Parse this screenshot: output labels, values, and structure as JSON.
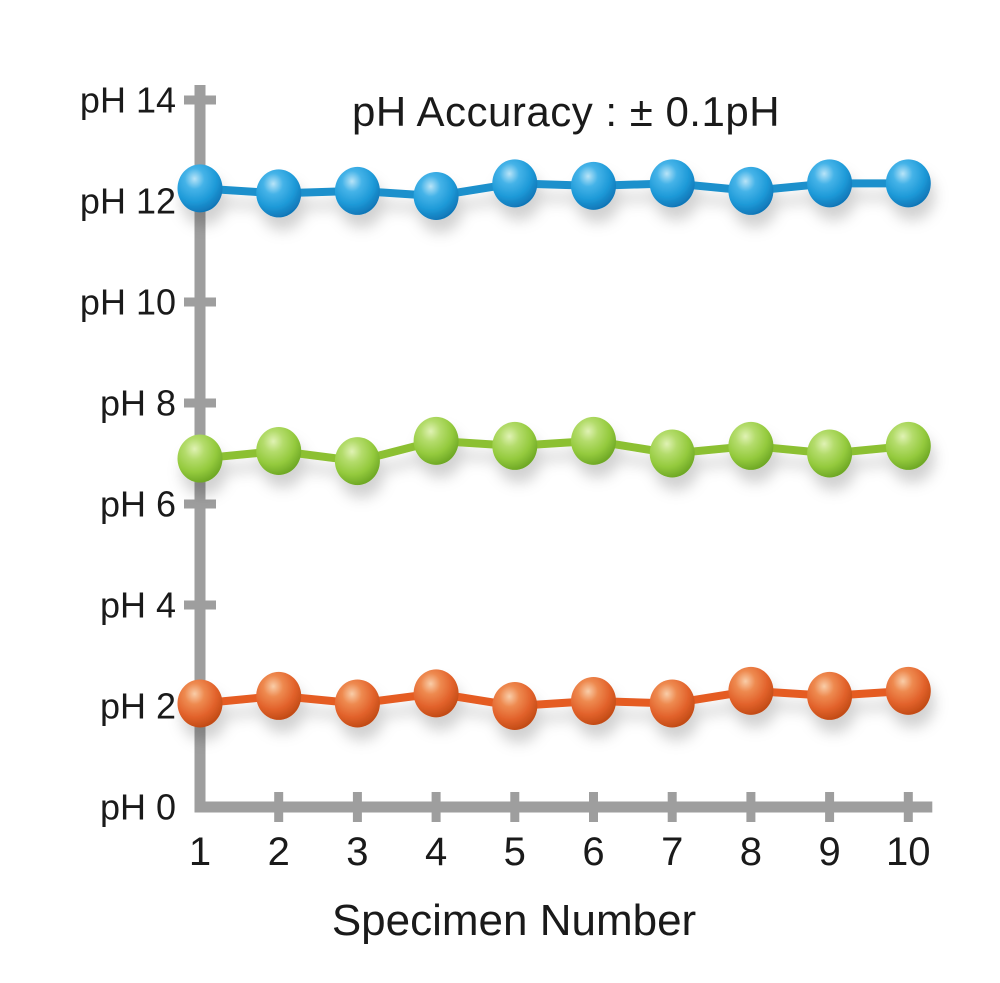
{
  "chart_data": {
    "type": "line",
    "title": "pH Accuracy : ± 0.1pH",
    "xlabel": "Specimen Number",
    "ylabel": "pH",
    "xlim": [
      1,
      10
    ],
    "ylim": [
      0,
      14
    ],
    "grid": false,
    "legend": "none",
    "x": [
      1,
      2,
      3,
      4,
      5,
      6,
      7,
      8,
      9,
      10
    ],
    "x_tick_labels": [
      "1",
      "2",
      "3",
      "4",
      "5",
      "6",
      "7",
      "8",
      "9",
      "10"
    ],
    "y_ticks": [
      14,
      12,
      10,
      8,
      6,
      4,
      2,
      0
    ],
    "y_tick_labels": [
      "pH 14",
      "pH 12",
      "pH 10",
      "pH 8",
      "pH 6",
      "pH 4",
      "pH 2",
      "pH 0"
    ],
    "series": [
      {
        "name": "blue",
        "values": [
          12.25,
          12.15,
          12.2,
          12.1,
          12.35,
          12.3,
          12.35,
          12.2,
          12.35,
          12.35
        ],
        "line_color": "#1a90cc",
        "ball_light": "#b8e4f8",
        "ball_mid": "#45b3e8",
        "ball_base": "#1e9ad8",
        "ball_dark": "#0c6cae"
      },
      {
        "name": "green",
        "values": [
          6.9,
          7.05,
          6.85,
          7.25,
          7.15,
          7.25,
          7.0,
          7.15,
          7.0,
          7.15
        ],
        "line_color": "#8cc030",
        "ball_light": "#e0f2b4",
        "ball_mid": "#b4dc6c",
        "ball_base": "#94ca3d",
        "ball_dark": "#639e1e"
      },
      {
        "name": "orange",
        "values": [
          2.05,
          2.2,
          2.05,
          2.25,
          2.0,
          2.1,
          2.05,
          2.3,
          2.2,
          2.3
        ],
        "line_color": "#e55b22",
        "ball_light": "#f9cda8",
        "ball_mid": "#ee8a50",
        "ball_base": "#e2622b",
        "ball_dark": "#b8440f"
      }
    ]
  },
  "colors": {
    "axis": "#9e9e9e",
    "text": "#1a1a1a",
    "background": "#ffffff"
  }
}
